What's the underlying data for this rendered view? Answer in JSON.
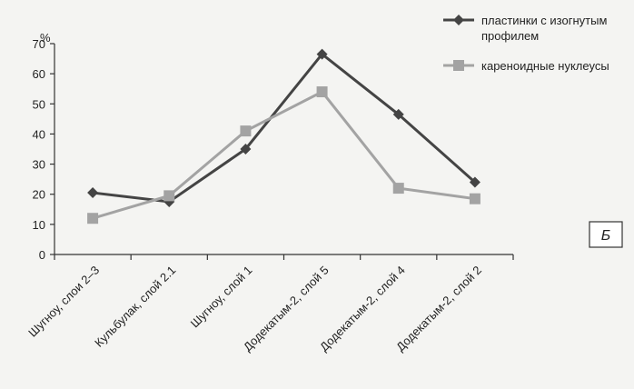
{
  "chart_data": {
    "type": "line",
    "categories": [
      "Шугноу, слои 2–3",
      "Кульбулак, слой 2.1",
      "Шугноу, слой 1",
      "Додекатым-2, слой 5",
      "Додекатым-2, слой 4",
      "Додекатым-2, слой 2"
    ],
    "series": [
      {
        "name_lines": [
          "пластинки с изогнутым",
          "профилем"
        ],
        "name": "пластинки с изогнутым профилем",
        "values": [
          20.5,
          17.5,
          35,
          66.5,
          46.5,
          24
        ],
        "color": "#444444",
        "marker": "diamond"
      },
      {
        "name": "кареноидные нуклеусы",
        "values": [
          12,
          19.5,
          41,
          54,
          22,
          18.5
        ],
        "color": "#a3a3a3",
        "marker": "square"
      }
    ],
    "ylabel": "%",
    "ylim": [
      0,
      70
    ],
    "yticks": [
      0,
      10,
      20,
      30,
      40,
      50,
      60,
      70
    ],
    "grid": false,
    "legend": "top-right",
    "panel_label": "Б"
  }
}
